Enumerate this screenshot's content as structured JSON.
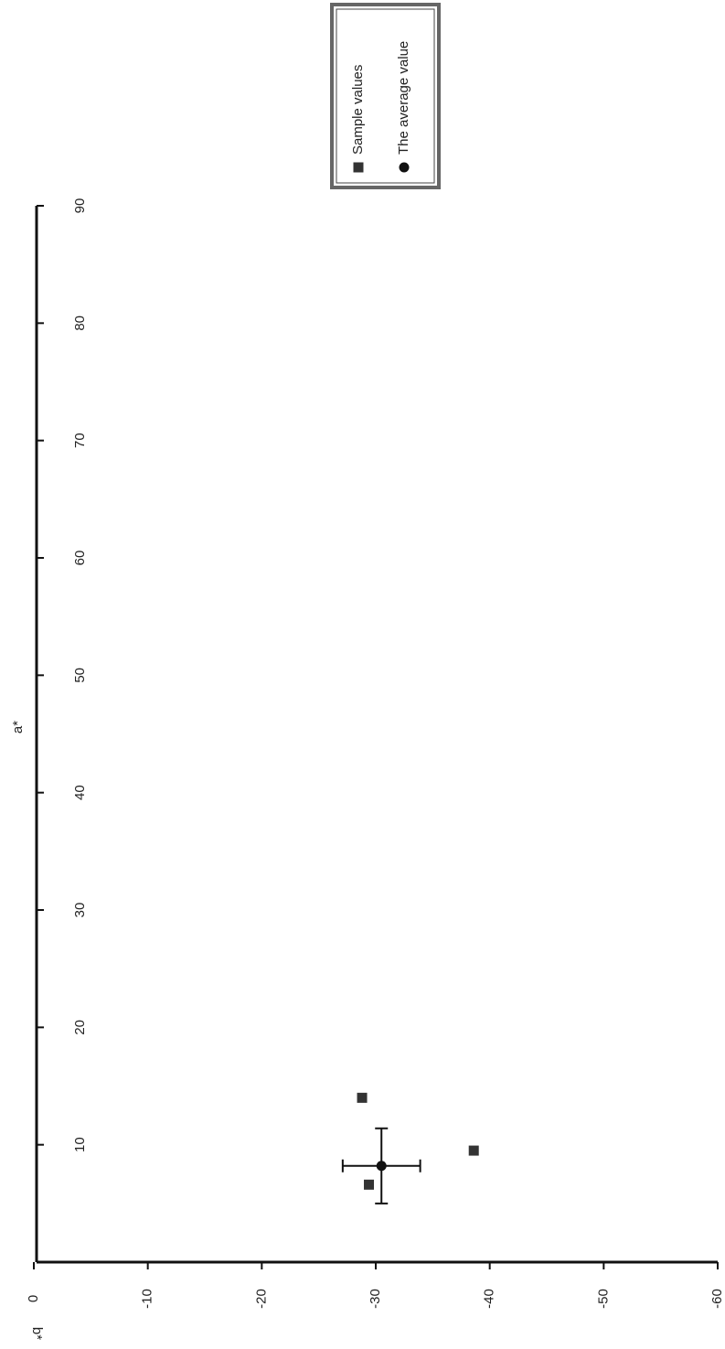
{
  "chart_data": {
    "type": "scatter",
    "x_label": "b*",
    "y_label": "a*",
    "xlim": [
      0,
      -60
    ],
    "xticks": [
      0,
      -10,
      -20,
      -30,
      -40,
      -50,
      -60
    ],
    "ylim": [
      0,
      90
    ],
    "yticks": [
      10,
      20,
      30,
      40,
      50,
      60,
      70,
      80,
      90
    ],
    "series": [
      {
        "name": "Sample values",
        "color": "#333333",
        "marker": "square",
        "x": [
          -28.8,
          -38.6,
          -29.4
        ],
        "y": [
          14.0,
          9.5,
          6.6
        ]
      },
      {
        "name": "The average value",
        "color": "#111111",
        "marker": "circle",
        "x": [
          -30.5
        ],
        "y": [
          8.2
        ],
        "x_error": [
          3.4
        ],
        "y_error": [
          3.2
        ]
      }
    ]
  }
}
